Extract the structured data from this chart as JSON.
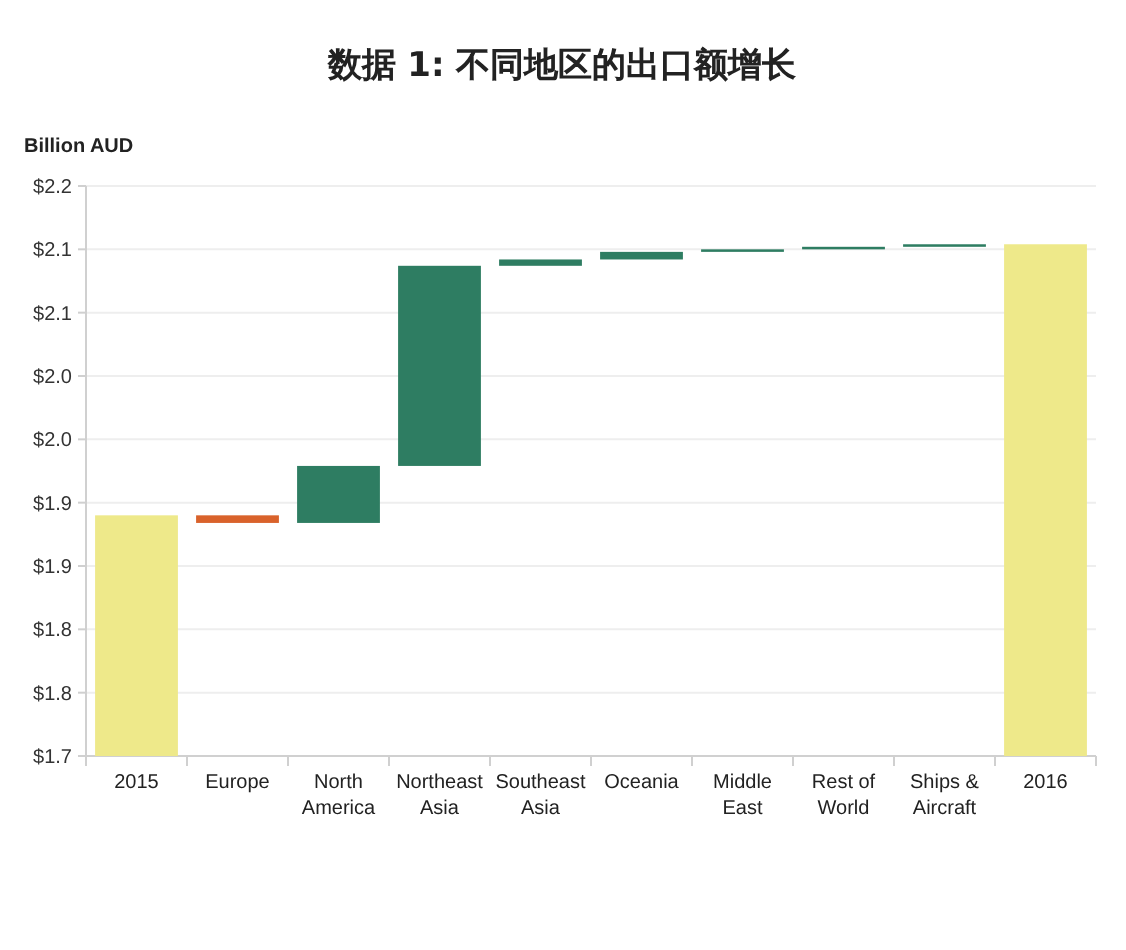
{
  "chart_data": {
    "type": "bar",
    "title": "数据 1: 不同地区的出口额增长",
    "ylabel": "Billion AUD",
    "categories": [
      "2015",
      "Europe",
      "North America",
      "Northeast Asia",
      "Southeast Asia",
      "Oceania",
      "Middle East",
      "Rest of World",
      "Ships & Aircraft",
      "2016"
    ],
    "values": [
      1.94,
      -0.006,
      0.045,
      0.158,
      0.005,
      0.006,
      0.002,
      0.002,
      0.002,
      2.154
    ],
    "base": [
      null,
      1.94,
      1.934,
      1.979,
      2.137,
      2.142,
      2.148,
      2.15,
      2.152,
      null
    ],
    "colors": [
      "#eee98a",
      "#d9622b",
      "#2e7d62",
      "#2e7d62",
      "#2e7d62",
      "#2e7d62",
      "#2e7d62",
      "#2e7d62",
      "#2e7d62",
      "#eee98a"
    ],
    "ylim": [
      1.75,
      2.2
    ],
    "yticks": [
      {
        "value": 1.75,
        "label": "$1.7"
      },
      {
        "value": 1.8,
        "label": "$1.8"
      },
      {
        "value": 1.85,
        "label": "$1.8"
      },
      {
        "value": 1.9,
        "label": "$1.9"
      },
      {
        "value": 1.95,
        "label": "$1.9"
      },
      {
        "value": 2.0,
        "label": "$2.0"
      },
      {
        "value": 2.05,
        "label": "$2.0"
      },
      {
        "value": 2.1,
        "label": "$2.1"
      },
      {
        "value": 2.15,
        "label": "$2.1"
      },
      {
        "value": 2.2,
        "label": "$2.2"
      }
    ],
    "grid": "y"
  }
}
